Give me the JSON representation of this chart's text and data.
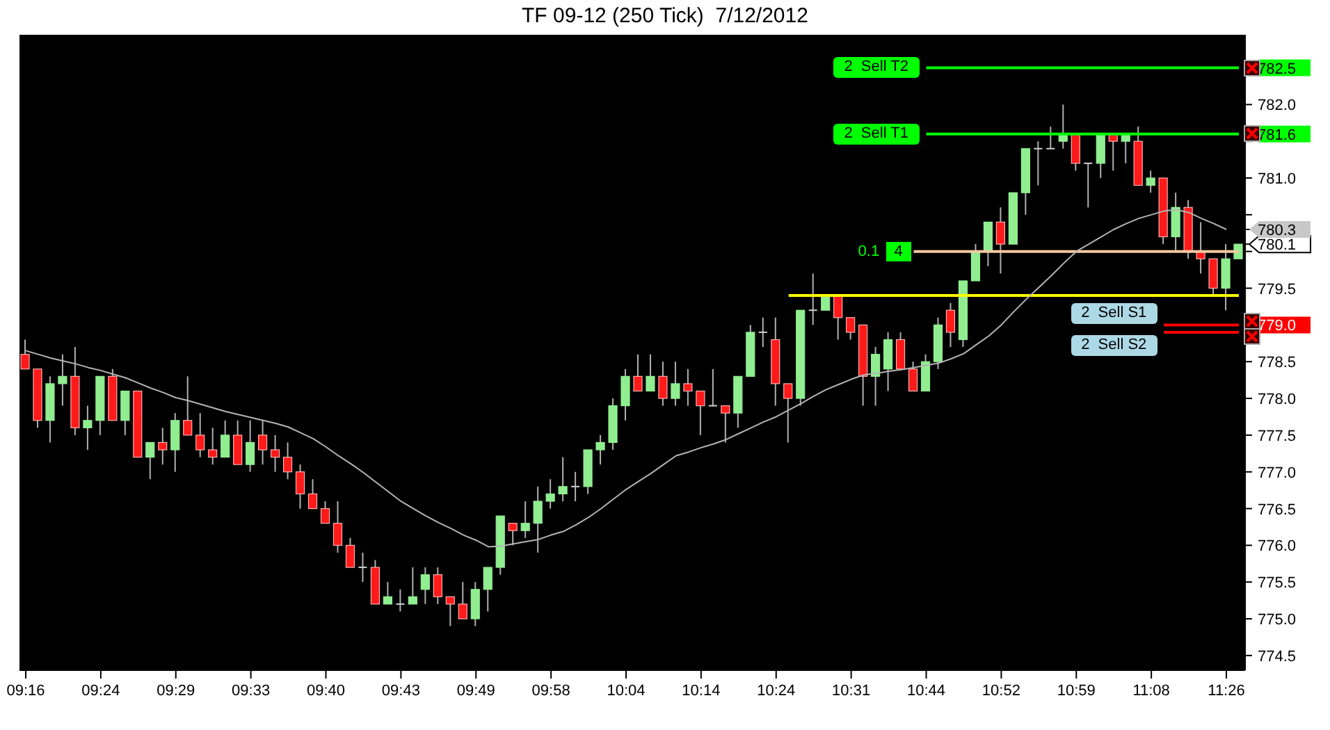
{
  "chart_data": {
    "type": "candlestick",
    "title": "TF 09-12 (250 Tick)  7/12/2012",
    "categories": [
      "09:16",
      null,
      null,
      null,
      null,
      null,
      "09:24",
      null,
      null,
      null,
      null,
      null,
      "09:29",
      null,
      null,
      null,
      null,
      null,
      "09:33",
      null,
      null,
      null,
      null,
      null,
      "09:40",
      null,
      null,
      null,
      null,
      null,
      "09:43",
      null,
      null,
      null,
      null,
      null,
      "09:49",
      null,
      null,
      null,
      null,
      null,
      "09:58",
      null,
      null,
      null,
      null,
      null,
      "10:04",
      null,
      null,
      null,
      null,
      null,
      "10:14",
      null,
      null,
      null,
      null,
      null,
      "10:24",
      null,
      null,
      null,
      null,
      null,
      "10:31",
      null,
      null,
      null,
      null,
      null,
      "10:44",
      null,
      null,
      null,
      null,
      null,
      "10:52",
      null,
      null,
      null,
      null,
      null,
      "10:59",
      null,
      null,
      null,
      null,
      null,
      "11:08",
      null,
      null,
      null,
      null,
      null,
      "11:26",
      null
    ],
    "ohlc": [
      [
        778.6,
        778.8,
        778.4,
        778.4
      ],
      [
        778.4,
        778.4,
        777.6,
        777.7
      ],
      [
        777.7,
        778.3,
        777.4,
        778.2
      ],
      [
        778.2,
        778.6,
        777.9,
        778.3
      ],
      [
        778.3,
        778.7,
        777.5,
        777.6
      ],
      [
        777.6,
        777.9,
        777.3,
        777.7
      ],
      [
        777.7,
        778.3,
        777.5,
        778.3
      ],
      [
        778.3,
        778.4,
        777.7,
        777.7
      ],
      [
        777.7,
        778.1,
        777.5,
        778.1
      ],
      [
        778.1,
        778.1,
        777.2,
        777.2
      ],
      [
        777.2,
        777.4,
        776.9,
        777.4
      ],
      [
        777.4,
        777.6,
        777.1,
        777.3
      ],
      [
        777.3,
        777.8,
        777.0,
        777.7
      ],
      [
        777.7,
        778.3,
        777.5,
        777.5
      ],
      [
        777.5,
        777.8,
        777.2,
        777.3
      ],
      [
        777.3,
        777.6,
        777.1,
        777.2
      ],
      [
        777.2,
        777.7,
        777.2,
        777.5
      ],
      [
        777.5,
        777.7,
        777.1,
        777.1
      ],
      [
        777.1,
        777.7,
        777.0,
        777.4
      ],
      [
        777.5,
        777.7,
        777.1,
        777.3
      ],
      [
        777.3,
        777.5,
        777.0,
        777.2
      ],
      [
        777.2,
        777.4,
        776.9,
        777.0
      ],
      [
        777.0,
        777.1,
        776.5,
        776.7
      ],
      [
        776.7,
        776.9,
        776.5,
        776.5
      ],
      [
        776.5,
        776.6,
        776.3,
        776.3
      ],
      [
        776.3,
        776.6,
        775.9,
        776.0
      ],
      [
        776.0,
        776.1,
        775.7,
        775.7
      ],
      [
        775.7,
        775.9,
        775.5,
        775.7
      ],
      [
        775.7,
        775.8,
        775.2,
        775.2
      ],
      [
        775.2,
        775.5,
        775.2,
        775.3
      ],
      [
        775.2,
        775.4,
        775.1,
        775.2
      ],
      [
        775.2,
        775.7,
        775.2,
        775.3
      ],
      [
        775.4,
        775.7,
        775.2,
        775.6
      ],
      [
        775.6,
        775.7,
        775.2,
        775.3
      ],
      [
        775.3,
        775.3,
        774.9,
        775.2
      ],
      [
        775.2,
        775.5,
        775.0,
        775.0
      ],
      [
        775.0,
        775.5,
        774.9,
        775.4
      ],
      [
        775.4,
        775.7,
        775.1,
        775.7
      ],
      [
        775.7,
        776.4,
        775.6,
        776.4
      ],
      [
        776.3,
        776.3,
        776.0,
        776.2
      ],
      [
        776.2,
        776.6,
        776.1,
        776.3
      ],
      [
        776.3,
        776.8,
        775.9,
        776.6
      ],
      [
        776.6,
        776.9,
        776.5,
        776.7
      ],
      [
        776.7,
        777.2,
        776.6,
        776.8
      ],
      [
        776.8,
        777.0,
        776.6,
        776.8
      ],
      [
        776.8,
        777.3,
        776.7,
        777.3
      ],
      [
        777.3,
        777.5,
        777.1,
        777.4
      ],
      [
        777.4,
        778.0,
        777.3,
        777.9
      ],
      [
        777.9,
        778.4,
        777.7,
        778.3
      ],
      [
        778.3,
        778.6,
        778.1,
        778.1
      ],
      [
        778.1,
        778.6,
        778.1,
        778.3
      ],
      [
        778.3,
        778.5,
        777.9,
        778.0
      ],
      [
        778.0,
        778.5,
        777.9,
        778.2
      ],
      [
        778.2,
        778.4,
        777.9,
        778.1
      ],
      [
        778.1,
        778.1,
        777.5,
        777.9
      ],
      [
        777.9,
        778.4,
        777.9,
        777.9
      ],
      [
        777.9,
        777.9,
        777.4,
        777.8
      ],
      [
        777.8,
        778.3,
        777.6,
        778.3
      ],
      [
        778.3,
        779.0,
        778.3,
        778.9
      ],
      [
        778.9,
        779.1,
        778.7,
        778.9
      ],
      [
        778.8,
        779.1,
        777.9,
        778.2
      ],
      [
        778.2,
        778.2,
        777.4,
        778.0
      ],
      [
        778.0,
        779.2,
        777.9,
        779.2
      ],
      [
        779.2,
        779.7,
        779.0,
        779.2
      ],
      [
        779.2,
        779.4,
        779.2,
        779.4
      ],
      [
        779.4,
        779.4,
        778.8,
        779.1
      ],
      [
        779.1,
        779.1,
        778.8,
        778.9
      ],
      [
        779.0,
        779.0,
        777.9,
        778.3
      ],
      [
        778.3,
        778.7,
        777.9,
        778.6
      ],
      [
        778.4,
        778.9,
        778.1,
        778.8
      ],
      [
        778.8,
        778.9,
        778.4,
        778.4
      ],
      [
        778.4,
        778.5,
        778.1,
        778.1
      ],
      [
        778.1,
        778.6,
        778.1,
        778.5
      ],
      [
        778.5,
        779.1,
        778.4,
        779.0
      ],
      [
        779.2,
        779.3,
        778.7,
        778.9
      ],
      [
        778.8,
        779.6,
        778.7,
        779.6
      ],
      [
        779.6,
        780.1,
        779.6,
        780.0
      ],
      [
        780.0,
        780.4,
        779.8,
        780.4
      ],
      [
        780.4,
        780.6,
        779.7,
        780.1
      ],
      [
        780.1,
        780.8,
        780.1,
        780.8
      ],
      [
        780.8,
        781.4,
        780.5,
        781.4
      ],
      [
        781.4,
        781.5,
        780.9,
        781.4
      ],
      [
        781.4,
        781.7,
        781.4,
        781.4
      ],
      [
        781.5,
        782.0,
        781.4,
        781.6
      ],
      [
        781.6,
        781.6,
        781.1,
        781.2
      ],
      [
        781.2,
        781.2,
        780.6,
        781.2
      ],
      [
        781.2,
        781.6,
        781.0,
        781.6
      ],
      [
        781.6,
        781.6,
        781.1,
        781.5
      ],
      [
        781.5,
        781.6,
        781.2,
        781.6
      ],
      [
        781.5,
        781.7,
        780.9,
        780.9
      ],
      [
        780.9,
        781.1,
        780.8,
        781.0
      ],
      [
        781.0,
        781.0,
        780.1,
        780.2
      ],
      [
        780.2,
        780.8,
        780.0,
        780.6
      ],
      [
        780.6,
        780.7,
        779.9,
        780.0
      ],
      [
        780.0,
        780.4,
        779.7,
        779.9
      ],
      [
        779.9,
        779.9,
        779.4,
        779.5
      ],
      [
        779.5,
        780.1,
        779.2,
        779.9
      ],
      [
        779.9,
        780.1,
        779.9,
        780.1
      ]
    ],
    "series": [
      {
        "type": "line",
        "color": "#b4b4b4",
        "values": [
          778.65,
          778.6,
          778.55,
          778.51,
          778.47,
          778.42,
          778.38,
          778.33,
          778.28,
          778.21,
          778.14,
          778.08,
          778.01,
          777.97,
          777.92,
          777.87,
          777.82,
          777.78,
          777.74,
          777.7,
          777.66,
          777.61,
          777.53,
          777.45,
          777.34,
          777.22,
          777.11,
          776.99,
          776.86,
          776.73,
          776.6,
          776.5,
          776.4,
          776.31,
          776.23,
          776.14,
          776.07,
          775.98,
          775.99,
          776.02,
          776.05,
          776.08,
          776.14,
          776.19,
          776.28,
          776.38,
          776.5,
          776.63,
          776.76,
          776.87,
          776.98,
          777.1,
          777.22,
          777.27,
          777.33,
          777.38,
          777.44,
          777.52,
          777.6,
          777.68,
          777.75,
          777.84,
          777.93,
          778.03,
          778.12,
          778.19,
          778.26,
          778.32,
          778.34,
          778.37,
          778.39,
          778.42,
          778.45,
          778.48,
          778.54,
          778.61,
          778.73,
          778.85,
          779.0,
          779.18,
          779.35,
          779.51,
          779.67,
          779.84,
          780.0,
          780.1,
          780.2,
          780.3,
          780.38,
          780.45,
          780.5,
          780.55,
          780.57,
          780.53,
          780.45,
          780.38,
          780.3,
          null
        ]
      }
    ],
    "ylim": [
      774.3,
      782.95
    ],
    "yticks": [
      774.5,
      {
        "value": 775,
        "label": "775.0"
      },
      775.5,
      {
        "value": 776,
        "label": "776.0"
      },
      776.5,
      {
        "value": 777,
        "label": "777.0"
      },
      777.5,
      {
        "value": 778,
        "label": "778.0"
      },
      778.5,
      {
        "value": 779,
        "label": "779.0"
      },
      779.5,
      {
        "value": 780,
        "label": null
      },
      780.1,
      780.3,
      {
        "value": 780.5,
        "label": null
      },
      {
        "value": 781,
        "label": "781.0"
      },
      {
        "value": 781.5,
        "label": null
      },
      781.6,
      {
        "value": 782,
        "label": "782.0"
      },
      782.5
    ],
    "ref_lines": [
      {
        "axis": "y",
        "value": 782.5,
        "label": "2  Sell T2",
        "color": "#00ff00"
      },
      {
        "axis": "y",
        "value": 781.6,
        "label": "2  Sell T1",
        "color": "#00ff00"
      },
      {
        "axis": "y",
        "value": 780.0,
        "color": "#f5c9a0"
      },
      {
        "axis": "y",
        "value": 779.4,
        "color": "#ffff00"
      },
      {
        "axis": "y",
        "value": 779.0,
        "label": "2  Sell S1",
        "color": "#ff0000"
      },
      {
        "axis": "y",
        "value": 778.9,
        "label": "2  Sell S2",
        "color": "#ff0000"
      }
    ],
    "annotations": [
      "0.1",
      "4"
    ]
  }
}
